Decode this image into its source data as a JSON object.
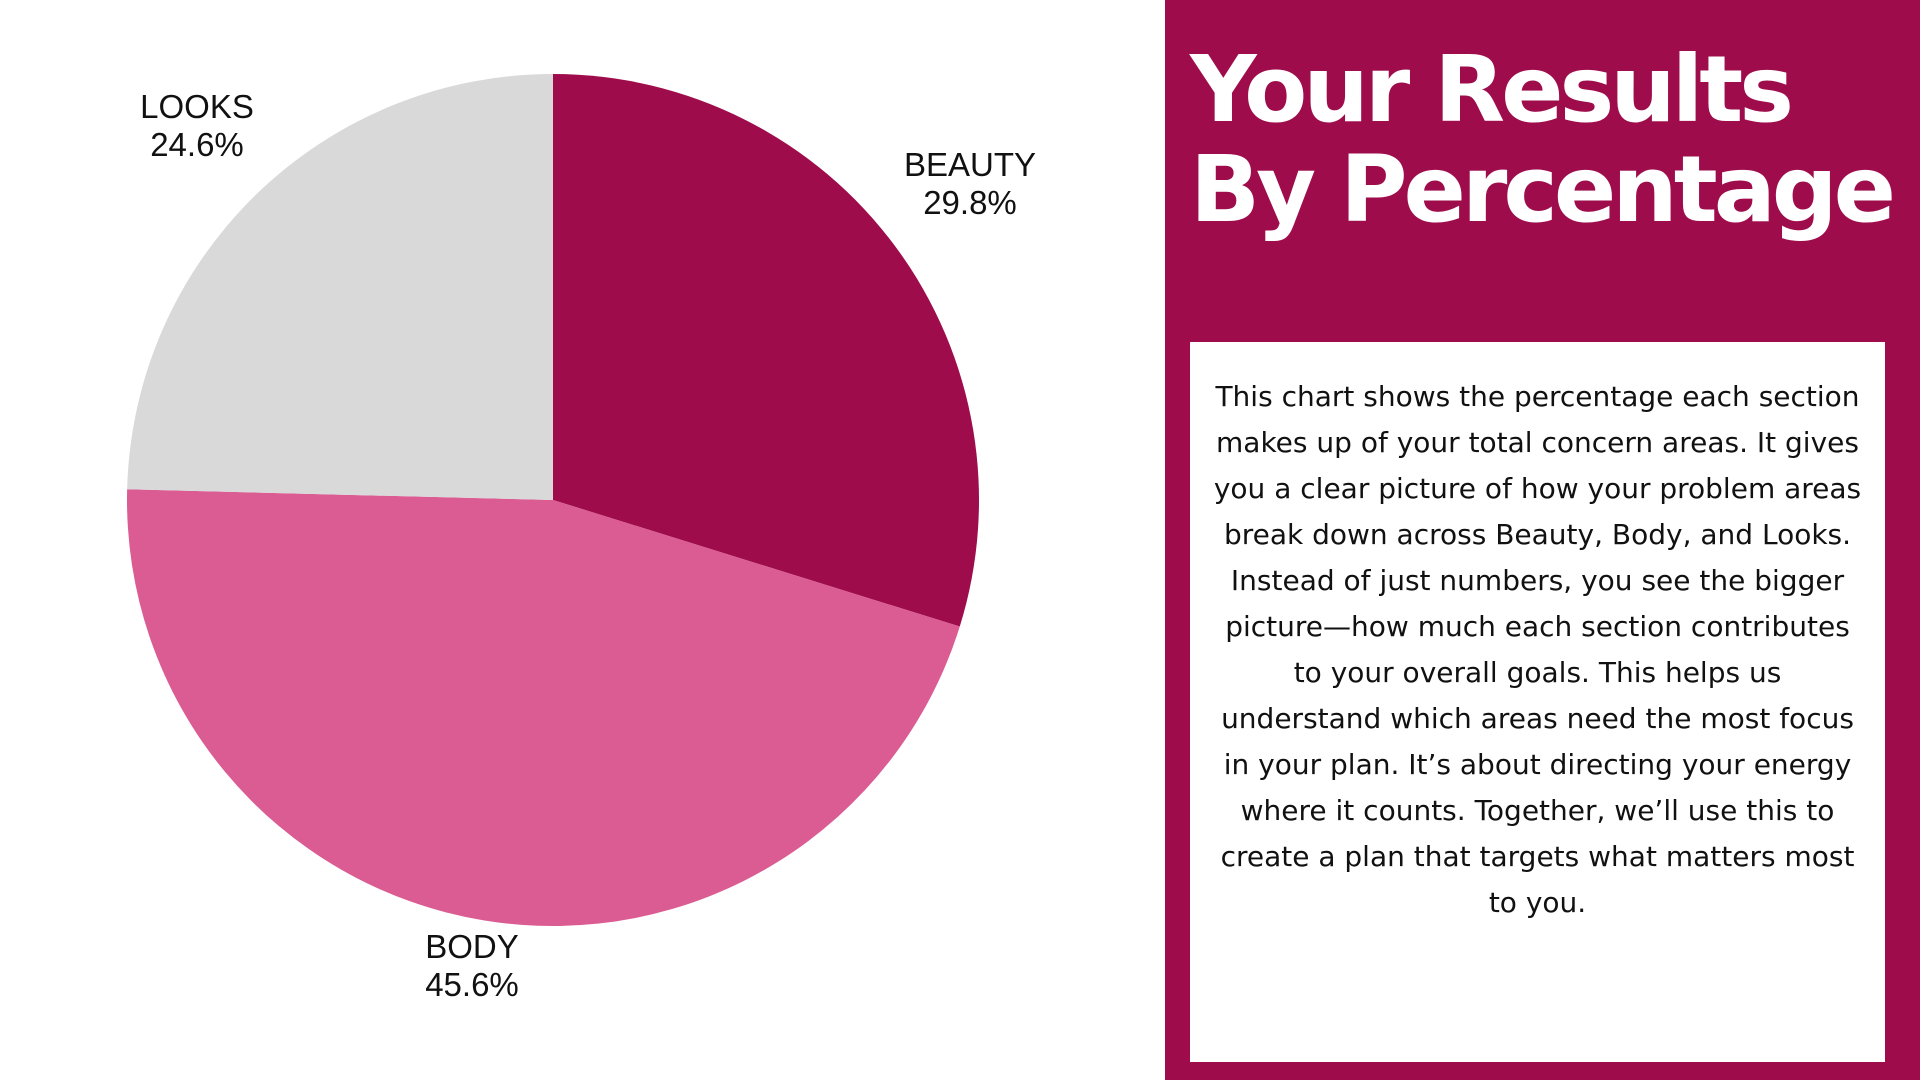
{
  "chart_data": {
    "type": "pie",
    "slices": [
      {
        "label": "BEAUTY",
        "value": 29.8,
        "value_label": "29.8%",
        "color": "#9e0c4b"
      },
      {
        "label": "BODY",
        "value": 45.6,
        "value_label": "45.6%",
        "color": "#db5b93"
      },
      {
        "label": "LOOKS",
        "value": 24.6,
        "value_label": "24.6%",
        "color": "#d9d9d9"
      }
    ],
    "start_angle": "12 o'clock",
    "direction": "clockwise",
    "legend": "none"
  },
  "panel": {
    "title_line1": "Your Results",
    "title_line2": "By Percentage",
    "background_color": "#9e0c4b",
    "description": "This chart shows the percentage each section makes up of your total concern areas. It gives you a clear picture of how your problem areas break down across Beauty, Body, and Looks. Instead of just numbers, you see the bigger picture—how much each section contributes to your overall goals. This helps us understand which areas need the most focus in your plan. It’s about directing your energy where it counts. Together, we’ll use this to create a plan that targets what matters most to you."
  }
}
